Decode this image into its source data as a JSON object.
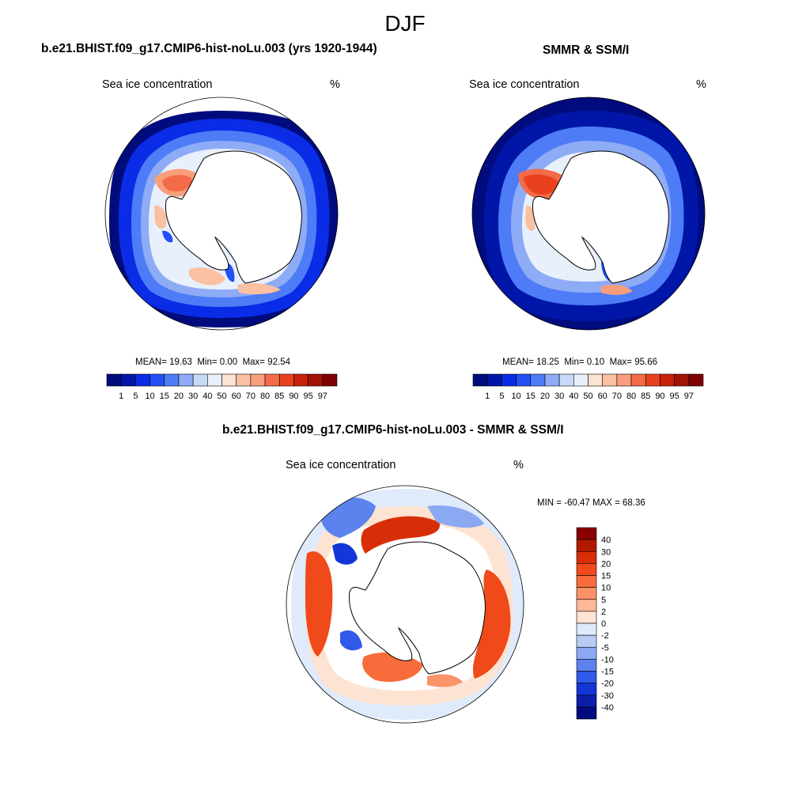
{
  "figure": {
    "title": "DJF"
  },
  "panels": [
    {
      "id": "model",
      "title": "b.e21.BHIST.f09_g17.CMIP6-hist-noLu.003 (yrs 1920-1944)",
      "variable": "Sea ice concentration",
      "units": "%",
      "stats": {
        "mean_label": "MEAN=",
        "mean": "19.63",
        "min_label": "Min=",
        "min": "0.00",
        "max_label": "Max=",
        "max": "92.54"
      }
    },
    {
      "id": "obs",
      "title": "SMMR & SSM/I",
      "variable": "Sea ice concentration",
      "units": "%",
      "stats": {
        "mean_label": "MEAN=",
        "mean": "18.25",
        "min_label": "Min=",
        "min": "0.10",
        "max_label": "Max=",
        "max": "95.66"
      }
    },
    {
      "id": "diff",
      "title": "b.e21.BHIST.f09_g17.CMIP6-hist-noLu.003 - SMMR & SSM/I",
      "variable": "Sea ice concentration",
      "units": "%",
      "stats_text": "MIN = -60.47 MAX =  68.36"
    }
  ],
  "colorbar_conc": {
    "levels": [
      "1",
      "5",
      "10",
      "15",
      "20",
      "30",
      "40",
      "50",
      "60",
      "70",
      "80",
      "85",
      "90",
      "95",
      "97"
    ],
    "colors": [
      "#000c7d",
      "#0016a8",
      "#0a2ce6",
      "#2250f5",
      "#4d7cf6",
      "#8eabf5",
      "#c8d9f7",
      "#e8f0fb",
      "#fde3d1",
      "#fbc0a2",
      "#f99e7c",
      "#f36b48",
      "#e9411e",
      "#c7210a",
      "#a11405",
      "#7e0202"
    ]
  },
  "colorbar_diff": {
    "levels": [
      "40",
      "30",
      "20",
      "15",
      "10",
      "5",
      "2",
      "0",
      "-2",
      "-5",
      "-10",
      "-15",
      "-20",
      "-30",
      "-40"
    ],
    "colors": [
      "#8a0000",
      "#b21a00",
      "#d82e08",
      "#f04a1a",
      "#f86c3c",
      "#fb9268",
      "#fdb898",
      "#fde3d1",
      "#dfeafb",
      "#b7cdf6",
      "#8ba8f2",
      "#5c82ee",
      "#2f5aea",
      "#1236d8",
      "#0a1ea8",
      "#000c7d"
    ]
  }
}
